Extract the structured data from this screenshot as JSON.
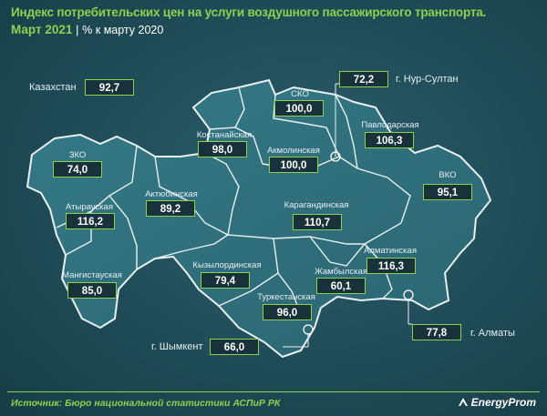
{
  "title": "Индекс потребительских цен на услуги воздушного пассажирского транспорта.",
  "subtitle": {
    "period": "Март 2021",
    "separator": "|",
    "unit": "% к марту 2020"
  },
  "country": {
    "name": "Казахстан",
    "value": "92,7"
  },
  "regions": [
    {
      "id": "zko",
      "name": "ЗКО",
      "value": "74,0"
    },
    {
      "id": "atyrau",
      "name": "Атырауская",
      "value": "116,2"
    },
    {
      "id": "mangistau",
      "name": "Мангистауская",
      "value": "85,0"
    },
    {
      "id": "aktobe",
      "name": "Актюбинская",
      "value": "89,2"
    },
    {
      "id": "kostanay",
      "name": "Костанайская",
      "value": "98,0"
    },
    {
      "id": "sko",
      "name": "СКО",
      "value": "100,0"
    },
    {
      "id": "akmola",
      "name": "Акмолинская",
      "value": "100,0"
    },
    {
      "id": "pavlodar",
      "name": "Павлодарская",
      "value": "106,3"
    },
    {
      "id": "vko",
      "name": "ВКО",
      "value": "95,1"
    },
    {
      "id": "karaganda",
      "name": "Карагандинская",
      "value": "110,7"
    },
    {
      "id": "kyzylorda",
      "name": "Кызылординская",
      "value": "79,4"
    },
    {
      "id": "zhambyl",
      "name": "Жамбылская",
      "value": "60,1"
    },
    {
      "id": "turkestan",
      "name": "Туркестанская",
      "value": "96,0"
    },
    {
      "id": "almaty_obl",
      "name": "Алматинская",
      "value": "116,3"
    }
  ],
  "cities": [
    {
      "id": "nur_sultan",
      "name": "г. Нур-Султан",
      "value": "72,2"
    },
    {
      "id": "almaty",
      "name": "г. Алматы",
      "value": "77,8"
    },
    {
      "id": "shymkent",
      "name": "г. Шымкент",
      "value": "66,0"
    }
  ],
  "source": "Источник: Бюро национальной статистики АСПиР РК",
  "logo": "EnergyProm",
  "colors": {
    "accent": "#8fd14f",
    "background": "#1e4954",
    "map_fill": "#2f6f7c",
    "border": "#e8f0f2",
    "value_box": "#17323a"
  }
}
